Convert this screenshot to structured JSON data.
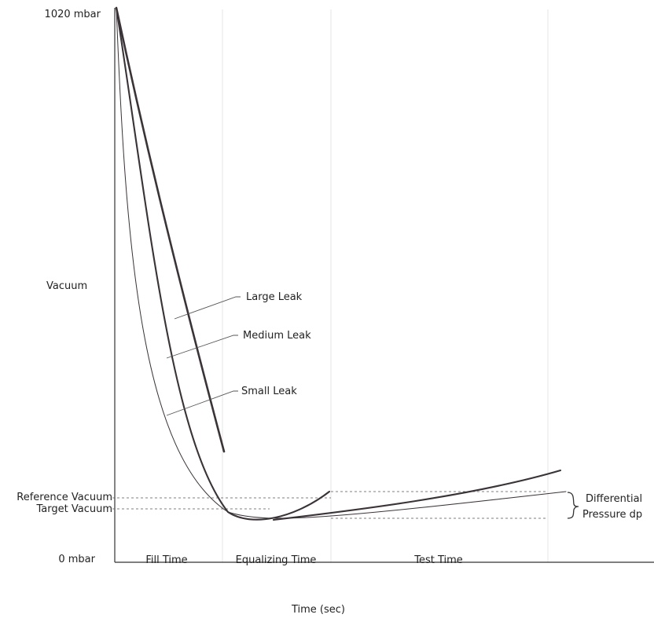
{
  "chart_data": {
    "type": "line",
    "title": "",
    "xlabel": "Time (sec)",
    "ylabel": "Vacuum",
    "y_ticks": [
      "1020 mbar",
      "0 mbar"
    ],
    "ylim": [
      0,
      1020
    ],
    "phases": [
      "Fill Time",
      "Equalizing Time",
      "Test Time"
    ],
    "reference_lines": [
      {
        "label": "Reference Vacuum",
        "value": 110
      },
      {
        "label": "Target Vacuum",
        "value": 89
      }
    ],
    "annotation": {
      "line1": "Differential",
      "line2": "Pressure dp"
    },
    "series": [
      {
        "name": "Large Leak",
        "points": [
          [
            0,
            1020
          ],
          [
            0.7,
            600
          ],
          [
            1.0,
            400
          ],
          [
            1.4,
            245
          ],
          [
            2.0,
            195
          ]
        ]
      },
      {
        "name": "Medium Leak",
        "points": [
          [
            0,
            1020
          ],
          [
            0.45,
            600
          ],
          [
            0.7,
            370
          ],
          [
            1.0,
            165
          ],
          [
            1.5,
            70
          ],
          [
            2.0,
            58
          ],
          [
            2.8,
            68
          ],
          [
            3.5,
            112
          ],
          [
            4,
            120
          ],
          [
            5,
            122
          ],
          [
            6,
            125
          ],
          [
            7,
            145
          ],
          [
            8,
            175
          ],
          [
            8.2,
            170
          ]
        ]
      },
      {
        "name": "Small Leak",
        "points": [
          [
            0,
            1020
          ],
          [
            0.25,
            700
          ],
          [
            0.5,
            470
          ],
          [
            0.9,
            230
          ],
          [
            1.3,
            110
          ],
          [
            2.0,
            68
          ],
          [
            2.8,
            65
          ],
          [
            3.5,
            70
          ],
          [
            5,
            85
          ],
          [
            6,
            100
          ],
          [
            7,
            115
          ],
          [
            8,
            128
          ],
          [
            8.2,
            125
          ]
        ]
      }
    ]
  }
}
